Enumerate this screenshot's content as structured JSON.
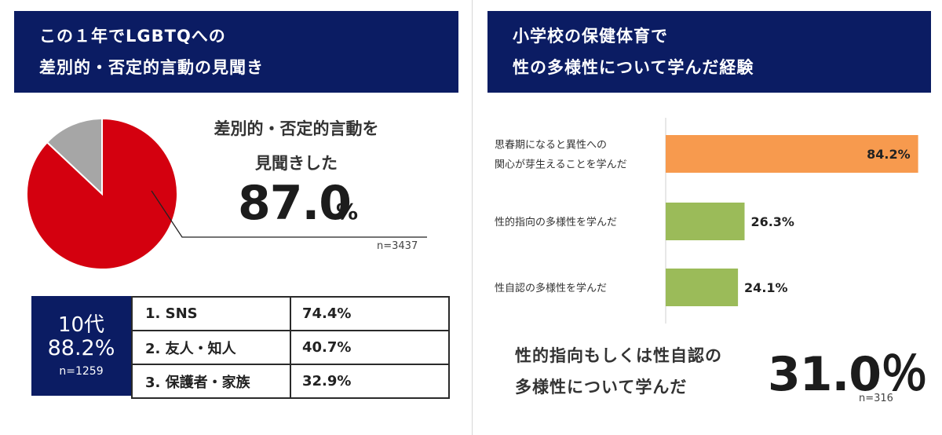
{
  "left": {
    "title_line1": "この１年でLGBTQへの",
    "title_line2": "差別的・否定的言動の見聞き",
    "caption_line1": "差別的・否定的言動を",
    "caption_line2": "見聞きした",
    "percent": "87.0",
    "percent_unit": "%",
    "n": "n=3437",
    "teen": {
      "label": "10代",
      "percent": "88.2%",
      "n": "n=1259"
    },
    "ranking": [
      {
        "item": "1. SNS",
        "value": "74.4%"
      },
      {
        "item": "2. 友人・知人",
        "value": "40.7%"
      },
      {
        "item": "3. 保護者・家族",
        "value": "32.9%"
      }
    ]
  },
  "right": {
    "title_line1": "小学校の保健体育で",
    "title_line2": "性の多様性について学んだ経験",
    "summary_line1": "性的指向もしくは性自認の",
    "summary_line2": "多様性について学んだ",
    "summary_percent": "31.0％",
    "n": "n=316"
  },
  "chart_data": [
    {
      "type": "pie",
      "slices": [
        {
          "label": "差別的・否定的言動を見聞きした",
          "value": 87.0,
          "color": "#d4000f"
        },
        {
          "value": 13.0,
          "color": "#a6a6a6"
        }
      ]
    },
    {
      "type": "bar",
      "orientation": "horizontal",
      "categories": [
        [
          "思春期になると異性への",
          "関心が芽生えることを学んだ"
        ],
        [
          "性的指向の多様性を学んだ"
        ],
        [
          "性自認の多様性を学んだ"
        ]
      ],
      "values": [
        84.2,
        26.3,
        24.1
      ],
      "value_labels": [
        "84.2%",
        "26.3%",
        "24.1%"
      ],
      "colors": [
        "#f79a4e",
        "#9bbb59",
        "#9bbb59"
      ],
      "xlim": [
        0,
        100
      ]
    }
  ]
}
